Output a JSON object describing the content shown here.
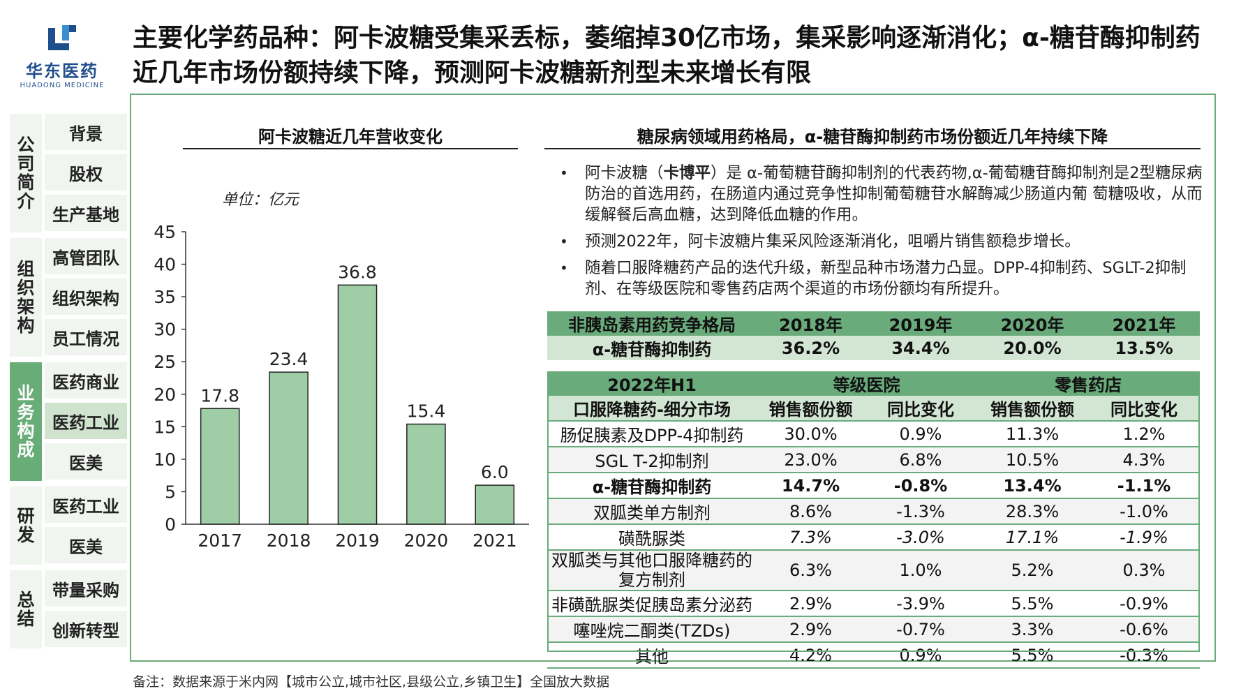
{
  "logo": {
    "cn": "华东医药",
    "en": "HUADONG MEDICINE"
  },
  "title": "主要化学药品种：阿卡波糖受集采丢标，萎缩掉30亿市场，集采影响逐渐消化；α-糖苷酶抑制药近几年市场份额持续下降，预测阿卡波糖新剂型未来增长有限",
  "sidebar": {
    "groups": [
      {
        "category": "公司简介",
        "items": [
          "背景",
          "股权",
          "生产基地"
        ]
      },
      {
        "category": "组织架构",
        "items": [
          "高管团队",
          "组织架构",
          "员工情况"
        ]
      },
      {
        "category": "业务构成",
        "items": [
          "医药商业",
          "医药工业",
          "医美"
        ]
      },
      {
        "category": "研发",
        "items": [
          "医药工业",
          "医美"
        ]
      },
      {
        "category": "总结",
        "items": [
          "带量采购",
          "创新转型"
        ]
      }
    ]
  },
  "left_section": {
    "title": "阿卡波糖近几年营收变化",
    "unit": "单位：亿元"
  },
  "chart_data": {
    "type": "bar",
    "title": "阿卡波糖近几年营收变化",
    "unit": "单位：亿元",
    "categories": [
      "2017",
      "2018",
      "2019",
      "2020",
      "2021"
    ],
    "values": [
      17.8,
      23.4,
      36.8,
      15.4,
      6.0
    ],
    "value_labels": [
      "17.8",
      "23.4",
      "36.8",
      "15.4",
      "6.0"
    ],
    "ylim": [
      0,
      45
    ],
    "yticks": [
      0,
      5,
      10,
      15,
      20,
      25,
      30,
      35,
      40,
      45
    ],
    "bar_color": "#9fcda6",
    "grid": false,
    "legend": "none"
  },
  "right_section": {
    "title": "糖尿病领域用药格局，α-糖苷酶抑制药市场份额近几年持续下降",
    "bullets": [
      {
        "pre": "阿卡波糖（",
        "bold": "卡博平",
        "post": "）是 α-葡萄糖苷酶抑制剂的代表药物,α-葡萄糖苷酶抑制剂是2型糖尿病防治的首选用药，在肠道内通过竞争性抑制葡萄糖苷水解酶减少肠道内葡 萄糖吸收，从而缓解餐后高血糖，达到降低血糖的作用。"
      },
      {
        "pre": "预测2022年，阿卡波糖片集采风险逐渐消化，咀嚼片销售额稳步增长。",
        "bold": "",
        "post": ""
      },
      {
        "pre": "随着口服降糖药产品的迭代升级，新型品种市场潜力凸显。DPP-4抑制药、SGLT-2抑制剂、在等级医院和零售药店两个渠道的市场份额均有所提升。",
        "bold": "",
        "post": ""
      }
    ]
  },
  "table1": {
    "headers": [
      "非胰岛素用药竞争格局",
      "2018年",
      "2019年",
      "2020年",
      "2021年"
    ],
    "row": [
      "α-糖苷酶抑制药",
      "36.2%",
      "34.4%",
      "20.0%",
      "13.5%"
    ]
  },
  "table2": {
    "group_headers": [
      "2022年H1",
      "等级医院",
      "零售药店"
    ],
    "sub_headers": [
      "口服降糖药-细分市场",
      "销售额份额",
      "同比变化",
      "销售额份额",
      "同比变化"
    ],
    "rows": [
      {
        "cells": [
          "肠促胰素及DPP-4抑制药",
          "30.0%",
          "0.9%",
          "11.3%",
          "1.2%"
        ],
        "style": ""
      },
      {
        "cells": [
          "SGL T-2抑制剂",
          "23.0%",
          "6.8%",
          "10.5%",
          "4.3%"
        ],
        "style": "shade"
      },
      {
        "cells": [
          "α-糖苷酶抑制药",
          "14.7%",
          "-0.8%",
          "13.4%",
          "-1.1%"
        ],
        "style": "bold"
      },
      {
        "cells": [
          "双胍类单方制剂",
          "8.6%",
          "-1.3%",
          "28.3%",
          "-1.0%"
        ],
        "style": "shade"
      },
      {
        "cells": [
          "磺酰脲类",
          "7.3%",
          "-3.0%",
          "17.1%",
          "-1.9%"
        ],
        "style": "italic"
      },
      {
        "cells": [
          "双胍类与其他口服降糖药的复方制剂",
          "6.3%",
          "1.0%",
          "5.2%",
          "0.3%"
        ],
        "style": "tall shade"
      },
      {
        "cells": [
          "非磺酰脲类促胰岛素分泌药",
          "2.9%",
          "-3.9%",
          "5.5%",
          "-0.9%"
        ],
        "style": ""
      },
      {
        "cells": [
          "噻唑烷二酮类(TZDs)",
          "2.9%",
          "-0.7%",
          "3.3%",
          "-0.6%"
        ],
        "style": "shade"
      },
      {
        "cells": [
          "其他",
          "4.2%",
          "0.9%",
          "5.5%",
          "-0.3%"
        ],
        "style": ""
      }
    ]
  },
  "footnote": "备注：数据来源于米内网【城市公立,城市社区,县级公立,乡镇卫生】全国放大数据",
  "colors": {
    "accent": "#6aab7b",
    "light": "#d3e6d3",
    "brand": "#1f4e8c",
    "active_nav": "#68ac77"
  }
}
